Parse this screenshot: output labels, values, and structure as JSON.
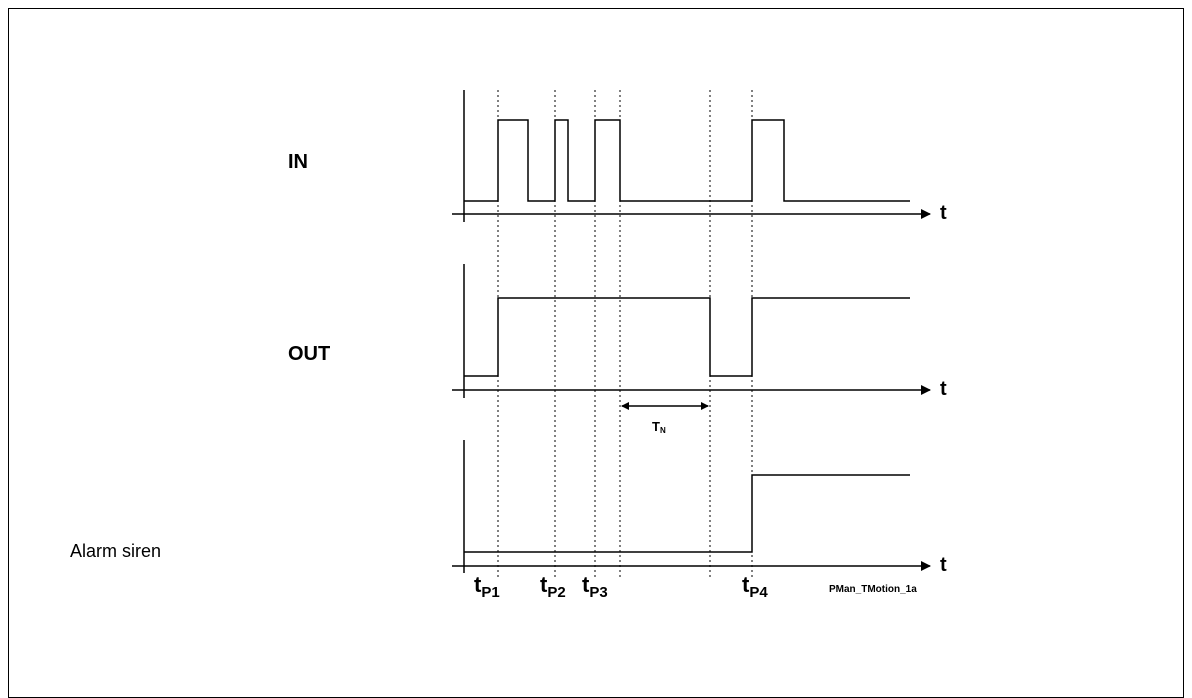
{
  "signals": {
    "in": "IN",
    "out": "OUT",
    "alarm": "Alarm siren"
  },
  "axis_label": "t",
  "markers": {
    "tp1": {
      "main": "t",
      "sub": "P1"
    },
    "tp2": {
      "main": "t",
      "sub": "P2"
    },
    "tp3": {
      "main": "t",
      "sub": "P3"
    },
    "tp4": {
      "main": "t",
      "sub": "P4"
    }
  },
  "interval": {
    "main": "T",
    "sub": "N"
  },
  "figure_id": "PMan_TMotion_1a"
}
